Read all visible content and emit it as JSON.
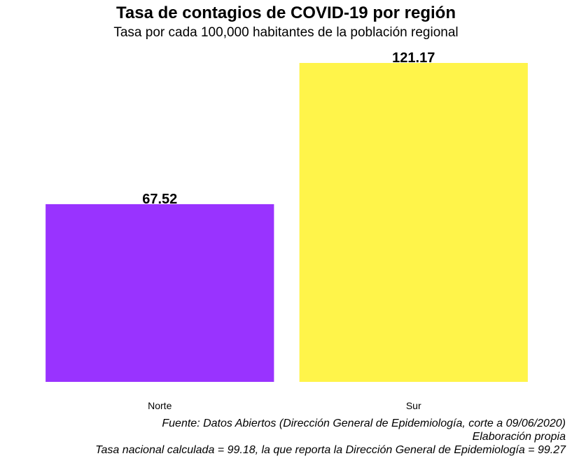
{
  "chart_data": {
    "type": "bar",
    "title": "Tasa de contagios de COVID-19 por región",
    "subtitle": "Tasa por cada 100,000 habitantes de la población regional",
    "categories": [
      "Norte",
      "Sur"
    ],
    "values": [
      67.52,
      121.17
    ],
    "data_labels": [
      "67.52",
      "121.17"
    ],
    "colors": [
      "#9933FF",
      "#FFF44A"
    ],
    "xlabel": "",
    "ylabel": "",
    "ylim": [
      0,
      121.17
    ],
    "grid": false,
    "legend": "none"
  },
  "captions": {
    "source": "Fuente: Datos Abiertos (Dirección General de Epidemiología, corte a 09/06/2020)",
    "author": "Elaboración propia",
    "note": "Tasa nacional calculada = 99.18, la que reporta la Dirección General de Epidemiología = 99.27"
  }
}
